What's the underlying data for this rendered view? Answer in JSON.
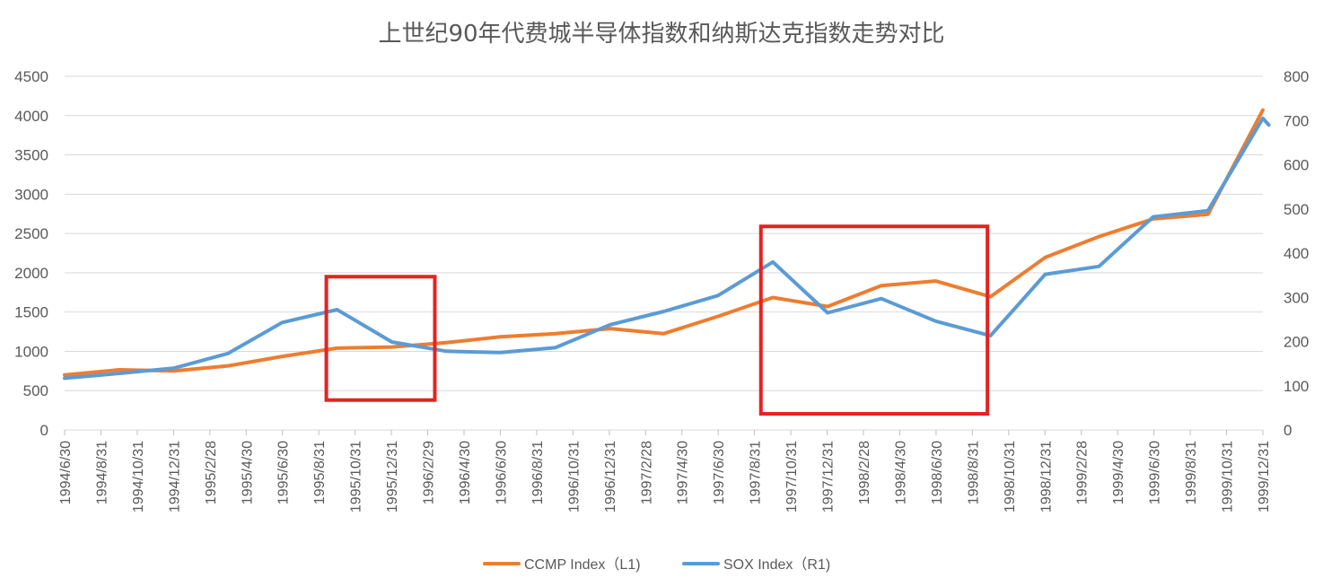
{
  "chart_data": {
    "type": "line",
    "title": "上世纪90年代费城半导体指数和纳斯达克指数走势对比",
    "y_left": {
      "ylim": [
        0,
        4500
      ],
      "ticks": [
        0,
        500,
        1000,
        1500,
        2000,
        2500,
        3000,
        3500,
        4000,
        4500
      ]
    },
    "y_right": {
      "ylim": [
        0,
        800
      ],
      "ticks": [
        0,
        100,
        200,
        300,
        400,
        500,
        600,
        700,
        800
      ]
    },
    "grid": true,
    "legend_position": "bottom",
    "x_tick_labels": [
      "1994/6/30",
      "1994/8/31",
      "1994/10/31",
      "1994/12/31",
      "1995/2/28",
      "1995/4/30",
      "1995/6/30",
      "1995/8/31",
      "1995/10/31",
      "1995/12/31",
      "1996/2/29",
      "1996/4/30",
      "1996/6/30",
      "1996/8/31",
      "1996/10/31",
      "1996/12/31",
      "1997/2/28",
      "1997/4/30",
      "1997/6/30",
      "1997/8/31",
      "1997/10/31",
      "1997/12/31",
      "1998/2/28",
      "1998/4/30",
      "1998/6/30",
      "1998/8/31",
      "1998/10/31",
      "1998/12/31",
      "1999/2/28",
      "1999/4/30",
      "1999/6/30",
      "1999/8/31",
      "1999/10/31",
      "1999/12/31"
    ],
    "series": [
      {
        "name": "CCMP Index（L1)",
        "axis": "left",
        "color": "#ed7d31",
        "x": [
          "1994/6/30",
          "1994/9/30",
          "1994/12/31",
          "1995/3/31",
          "1995/6/30",
          "1995/9/30",
          "1995/12/31",
          "1996/3/31",
          "1996/6/30",
          "1996/9/30",
          "1996/12/31",
          "1997/3/31",
          "1997/6/30",
          "1997/9/30",
          "1997/12/31",
          "1998/3/31",
          "1998/6/30",
          "1998/9/30",
          "1998/12/31",
          "1999/3/31",
          "1999/6/30",
          "1999/9/30",
          "1999/12/31"
        ],
        "values": [
          700,
          765,
          750,
          815,
          935,
          1040,
          1055,
          1110,
          1185,
          1225,
          1290,
          1225,
          1445,
          1685,
          1570,
          1835,
          1895,
          1695,
          2195,
          2460,
          2685,
          2745,
          4070
        ]
      },
      {
        "name": "SOX Index（R1)",
        "axis": "right",
        "color": "#5b9bd5",
        "x": [
          "1994/6/30",
          "1994/9/30",
          "1994/12/31",
          "1995/3/31",
          "1995/6/30",
          "1995/9/30",
          "1995/12/31",
          "1996/3/31",
          "1996/6/30",
          "1996/9/30",
          "1996/12/31",
          "1997/3/31",
          "1997/6/30",
          "1997/9/30",
          "1997/12/31",
          "1998/3/31",
          "1998/6/30",
          "1998/9/30",
          "1998/12/31",
          "1999/3/31",
          "1999/6/30",
          "1999/9/30",
          "1999/12/31",
          "2000/1/10"
        ],
        "values": [
          117,
          128,
          140,
          173,
          243,
          272,
          199,
          178,
          175,
          186,
          238,
          268,
          304,
          380,
          265,
          297,
          246,
          213,
          352,
          370,
          482,
          496,
          705,
          690
        ]
      }
    ],
    "annotations": [
      {
        "type": "highlight-box",
        "x_start": "1995/9/12",
        "x_end": "1996/3/12",
        "y_left_range": [
          380,
          1950
        ],
        "color": "#e52222"
      },
      {
        "type": "highlight-box",
        "x_start": "1997/9/10",
        "x_end": "1998/9/25",
        "y_left_range": [
          205,
          2590
        ],
        "color": "#e52222"
      }
    ]
  }
}
